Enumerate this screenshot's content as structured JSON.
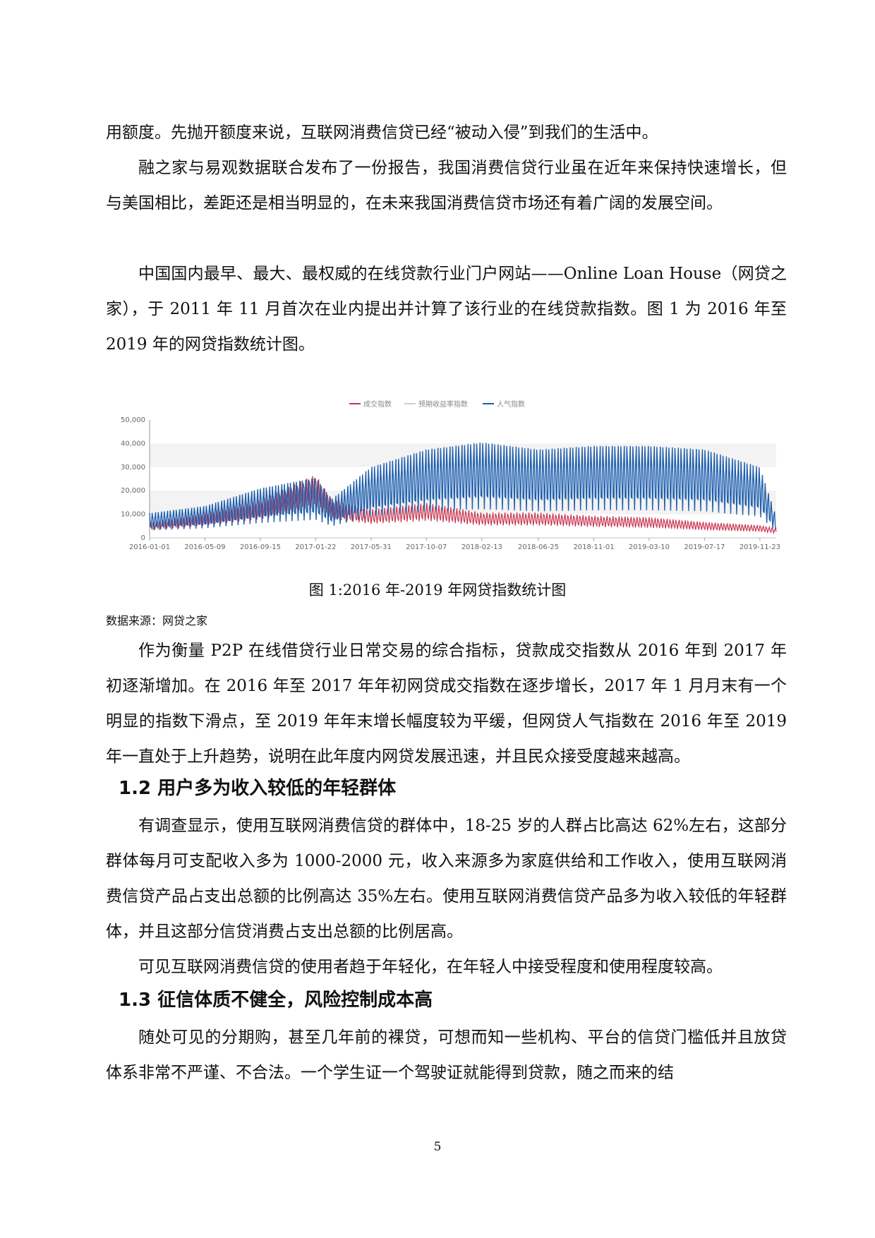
{
  "paragraphs": {
    "p1": "用额度。先抛开额度来说，互联网消费信贷已经“被动入侵”到我们的生活中。",
    "p2": "融之家与易观数据联合发布了一份报告，我国消费信贷行业虽在近年来保持快速增长，但与美国相比，差距还是相当明显的，在未来我国消费信贷市场还有着广阔的发展空间。",
    "p3": "中国国内最早、最大、最权威的在线贷款行业门户网站——Online Loan House（网贷之家），于 2011 年 11 月首次在业内提出并计算了该行业的在线贷款指数。图 1 为 2016 年至 2019 年的网贷指数统计图。",
    "p4": "作为衡量 P2P 在线借贷行业日常交易的综合指标，贷款成交指数从 2016 年到 2017 年初逐渐增加。在 2016 年至 2017 年年初网贷成交指数在逐步增长，2017 年 1 月月末有一个明显的指数下滑点，至 2019 年年末增长幅度较为平缓，但网贷人气指数在 2016 年至 2019 年一直处于上升趋势，说明在此年度内网贷发展迅速，并且民众接受度越来越高。",
    "p5": "有调查显示，使用互联网消费信贷的群体中，18-25 岁的人群占比高达 62%左右，这部分群体每月可支配收入多为 1000-2000 元，收入来源多为家庭供给和工作收入，使用互联网消费信贷产品占支出总额的比例高达 35%左右。使用互联网消费信贷产品多为收入较低的年轻群体，并且这部分信贷消费占支出总额的比例居高。",
    "p6": "可见互联网消费信贷的使用者趋于年轻化，在年轻人中接受程度和使用程度较高。",
    "p7": "随处可见的分期购，甚至几年前的裸贷，可想而知一些机构、平台的信贷门槛低并且放贷体系非常不严谨、不合法。一个学生证一个驾驶证就能得到贷款，随之而来的结"
  },
  "headings": {
    "h12": "1.2 用户多为收入较低的年轻群体",
    "h13": "1.3 征信体质不健全，风险控制成本高"
  },
  "figure": {
    "caption": "图 1:2016 年-2019 年网贷指数统计图",
    "source": "数据来源：网贷之家"
  },
  "page_number": "5",
  "chart_data": {
    "type": "line",
    "title": "",
    "xlabel": "",
    "ylabel": "",
    "ylim": [
      0,
      50000
    ],
    "yticks": [
      "0",
      "10,000",
      "20,000",
      "30,000",
      "40,000",
      "50,000"
    ],
    "x_ticks": [
      "2016-01-01",
      "2016-05-09",
      "2016-09-15",
      "2017-01-22",
      "2017-05-31",
      "2017-10-07",
      "2018-02-13",
      "2018-06-25",
      "2018-11-01",
      "2019-03-10",
      "2019-07-17",
      "2019-11-23"
    ],
    "legend_position": "top-center",
    "grid": "horizontal-bands",
    "series": [
      {
        "name": "成交指数",
        "color": "#c8344f",
        "x": [
          "2016-01-01",
          "2016-05-09",
          "2016-09-15",
          "2017-01-22",
          "2017-03-01",
          "2017-05-31",
          "2017-10-07",
          "2018-02-13",
          "2018-06-25",
          "2018-11-01",
          "2019-03-10",
          "2019-07-17",
          "2019-11-23",
          "2019-12-31"
        ],
        "values": [
          5000,
          8000,
          12000,
          20000,
          12000,
          9000,
          11000,
          8000,
          8000,
          7000,
          6500,
          5000,
          4000,
          3000
        ]
      },
      {
        "name": "预期收益率指数",
        "color": "#cccccc",
        "x": [
          "2016-01-01",
          "2019-12-31"
        ],
        "values": [
          10,
          10
        ]
      },
      {
        "name": "人气指数",
        "color": "#1f5fad",
        "x": [
          "2016-01-01",
          "2016-05-09",
          "2016-09-15",
          "2017-01-22",
          "2017-03-01",
          "2017-05-31",
          "2017-10-07",
          "2018-02-13",
          "2018-06-25",
          "2018-11-01",
          "2019-03-10",
          "2019-07-17",
          "2019-11-23",
          "2019-12-31"
        ],
        "values": [
          7000,
          9000,
          14000,
          17000,
          11000,
          20000,
          25000,
          27000,
          25000,
          26000,
          26000,
          25000,
          20000,
          6000
        ]
      }
    ]
  }
}
